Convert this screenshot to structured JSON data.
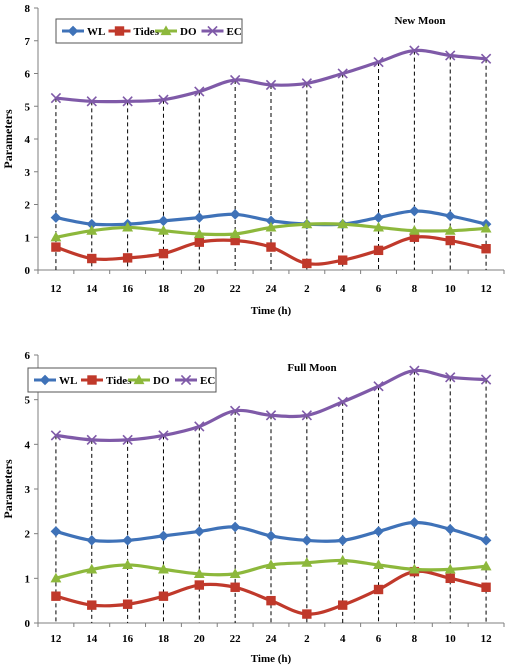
{
  "colors": {
    "WL": "#3f72b8",
    "Tides": "#c0392b",
    "DO": "#8db83c",
    "EC": "#7f5aa8",
    "axis": "#7f7f7f",
    "droplines": "#000000"
  },
  "chart_data": [
    {
      "type": "line",
      "title": "New Moon",
      "xlabel": "Time (h)",
      "ylabel": "Parameters",
      "categories": [
        "12",
        "14",
        "16",
        "18",
        "20",
        "22",
        "24",
        "2",
        "4",
        "6",
        "8",
        "10",
        "12"
      ],
      "ylim": [
        0,
        8
      ],
      "yticks": [
        0,
        1,
        2,
        3,
        4,
        5,
        6,
        7,
        8
      ],
      "legend": "top-left",
      "grid": false,
      "series": [
        {
          "name": "WL",
          "marker": "diamond",
          "values": [
            1.6,
            1.4,
            1.4,
            1.5,
            1.6,
            1.7,
            1.5,
            1.4,
            1.4,
            1.6,
            1.8,
            1.65,
            1.4
          ]
        },
        {
          "name": "Tides",
          "marker": "square",
          "values": [
            0.7,
            0.35,
            0.37,
            0.5,
            0.85,
            0.9,
            0.7,
            0.2,
            0.3,
            0.6,
            1.0,
            0.9,
            0.65
          ]
        },
        {
          "name": "DO",
          "marker": "triangle",
          "values": [
            1.0,
            1.2,
            1.3,
            1.2,
            1.1,
            1.1,
            1.3,
            1.4,
            1.4,
            1.3,
            1.2,
            1.2,
            1.27
          ]
        },
        {
          "name": "EC",
          "marker": "x",
          "values": [
            5.25,
            5.15,
            5.15,
            5.2,
            5.45,
            5.8,
            5.65,
            5.7,
            6.0,
            6.35,
            6.7,
            6.55,
            6.45
          ]
        }
      ]
    },
    {
      "type": "line",
      "title": "Full Moon",
      "xlabel": "Time (h)",
      "ylabel": "Parameters",
      "categories": [
        "12",
        "14",
        "16",
        "18",
        "20",
        "22",
        "24",
        "2",
        "4",
        "6",
        "8",
        "10",
        "12"
      ],
      "ylim": [
        0,
        6
      ],
      "yticks": [
        0,
        1,
        2,
        3,
        4,
        5,
        6
      ],
      "legend": "top-left",
      "grid": false,
      "series": [
        {
          "name": "WL",
          "marker": "diamond",
          "values": [
            2.05,
            1.85,
            1.85,
            1.95,
            2.05,
            2.15,
            1.95,
            1.85,
            1.85,
            2.05,
            2.25,
            2.1,
            1.85
          ]
        },
        {
          "name": "Tides",
          "marker": "square",
          "values": [
            0.6,
            0.4,
            0.42,
            0.6,
            0.85,
            0.8,
            0.5,
            0.2,
            0.4,
            0.75,
            1.15,
            1.0,
            0.8
          ]
        },
        {
          "name": "DO",
          "marker": "triangle",
          "values": [
            1.0,
            1.2,
            1.3,
            1.2,
            1.1,
            1.1,
            1.3,
            1.35,
            1.4,
            1.3,
            1.2,
            1.2,
            1.27
          ]
        },
        {
          "name": "EC",
          "marker": "x",
          "values": [
            4.2,
            4.1,
            4.1,
            4.2,
            4.4,
            4.75,
            4.65,
            4.65,
            4.95,
            5.3,
            5.65,
            5.5,
            5.45
          ]
        }
      ]
    }
  ]
}
